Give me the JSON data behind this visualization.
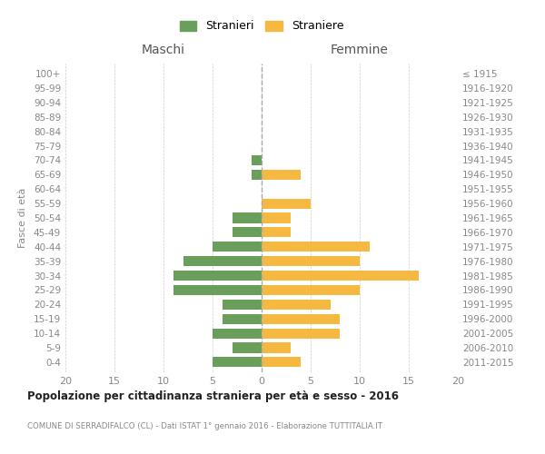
{
  "age_groups": [
    "0-4",
    "5-9",
    "10-14",
    "15-19",
    "20-24",
    "25-29",
    "30-34",
    "35-39",
    "40-44",
    "45-49",
    "50-54",
    "55-59",
    "60-64",
    "65-69",
    "70-74",
    "75-79",
    "80-84",
    "85-89",
    "90-94",
    "95-99",
    "100+"
  ],
  "birth_years": [
    "2011-2015",
    "2006-2010",
    "2001-2005",
    "1996-2000",
    "1991-1995",
    "1986-1990",
    "1981-1985",
    "1976-1980",
    "1971-1975",
    "1966-1970",
    "1961-1965",
    "1956-1960",
    "1951-1955",
    "1946-1950",
    "1941-1945",
    "1936-1940",
    "1931-1935",
    "1926-1930",
    "1921-1925",
    "1916-1920",
    "≤ 1915"
  ],
  "maschi": [
    5,
    3,
    5,
    4,
    4,
    9,
    9,
    8,
    5,
    3,
    3,
    0,
    0,
    1,
    1,
    0,
    0,
    0,
    0,
    0,
    0
  ],
  "femmine": [
    4,
    3,
    8,
    8,
    7,
    10,
    16,
    10,
    11,
    3,
    3,
    5,
    0,
    4,
    0,
    0,
    0,
    0,
    0,
    0,
    0
  ],
  "color_maschi": "#6a9e5b",
  "color_femmine": "#f5b942",
  "title": "Popolazione per cittadinanza straniera per età e sesso - 2016",
  "subtitle": "COMUNE DI SERRADIFALCO (CL) - Dati ISTAT 1° gennaio 2016 - Elaborazione TUTTITALIA.IT",
  "ylabel_left": "Fasce di età",
  "xlabel_left": "Maschi",
  "xlabel_right": "Femmine",
  "legend_maschi": "Stranieri",
  "legend_femmine": "Straniere",
  "xlim": 20,
  "background_color": "#ffffff",
  "grid_color": "#cccccc",
  "bar_height": 0.7
}
